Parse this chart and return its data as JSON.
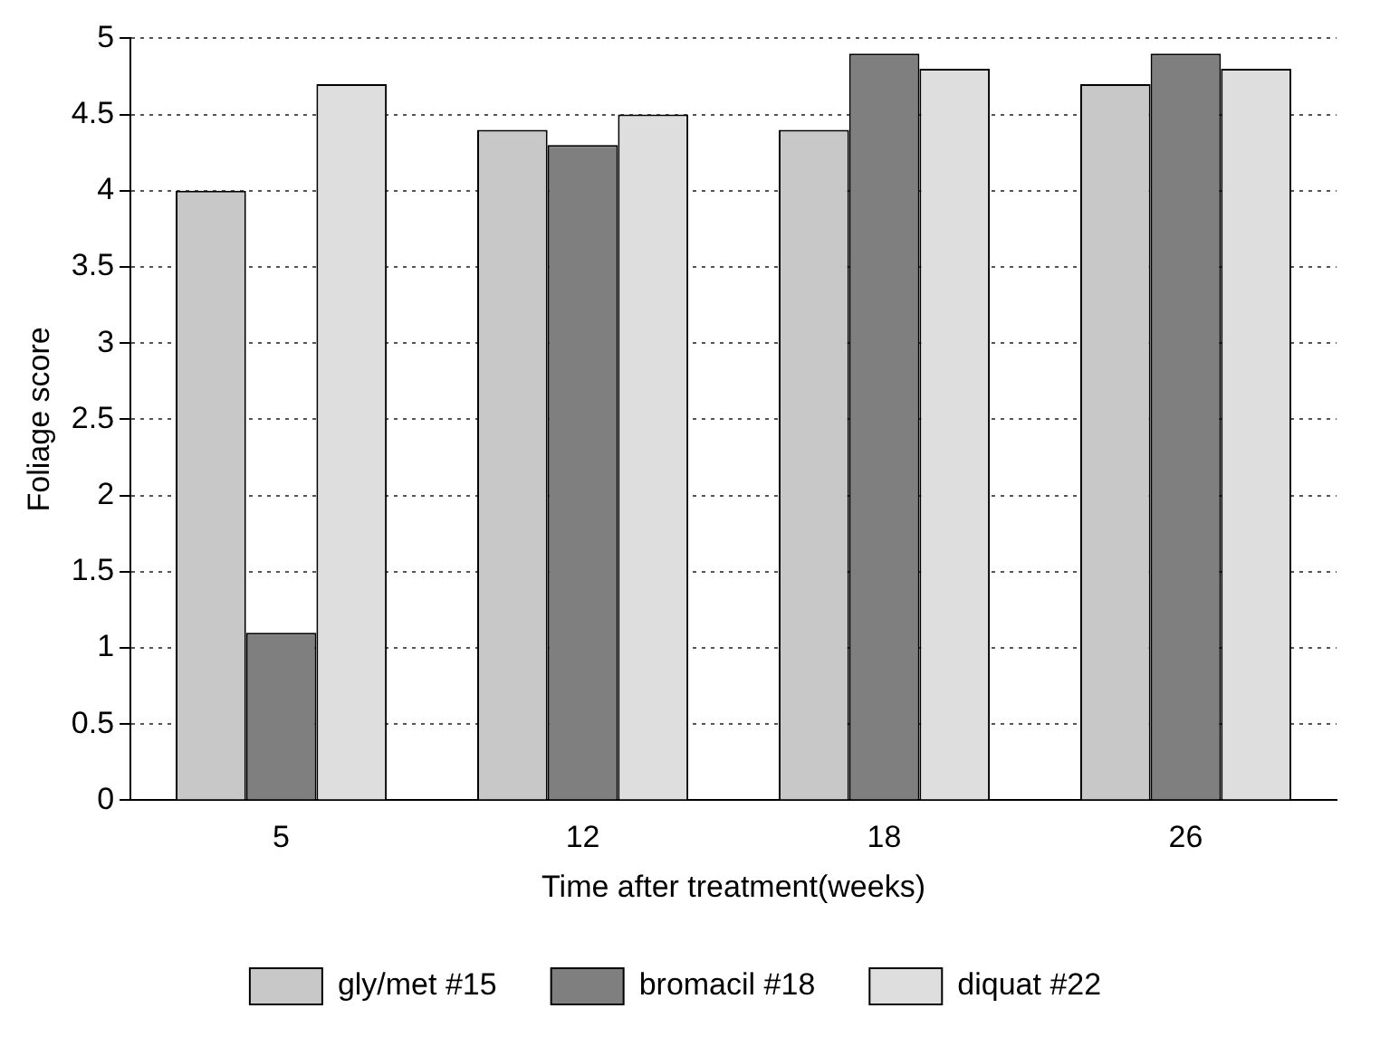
{
  "chart_data": {
    "type": "bar",
    "xlabel": "Time after treatment(weeks)",
    "ylabel": "Foliage score",
    "categories": [
      "5",
      "12",
      "18",
      "26"
    ],
    "series": [
      {
        "name": "gly/met #15",
        "color": "#c8c8c8",
        "values": [
          4.0,
          4.4,
          4.4,
          4.7
        ]
      },
      {
        "name": "bromacil #18",
        "color": "#7f7f7f",
        "values": [
          1.1,
          4.3,
          4.9,
          4.9
        ]
      },
      {
        "name": "diquat #22",
        "color": "#dedede",
        "values": [
          4.7,
          4.5,
          4.8,
          4.8
        ]
      }
    ],
    "ylim": [
      0,
      5
    ],
    "yticks": [
      0,
      0.5,
      1,
      1.5,
      2,
      2.5,
      3,
      3.5,
      4,
      4.5,
      5
    ],
    "grid": "y",
    "legend": "bottom"
  }
}
